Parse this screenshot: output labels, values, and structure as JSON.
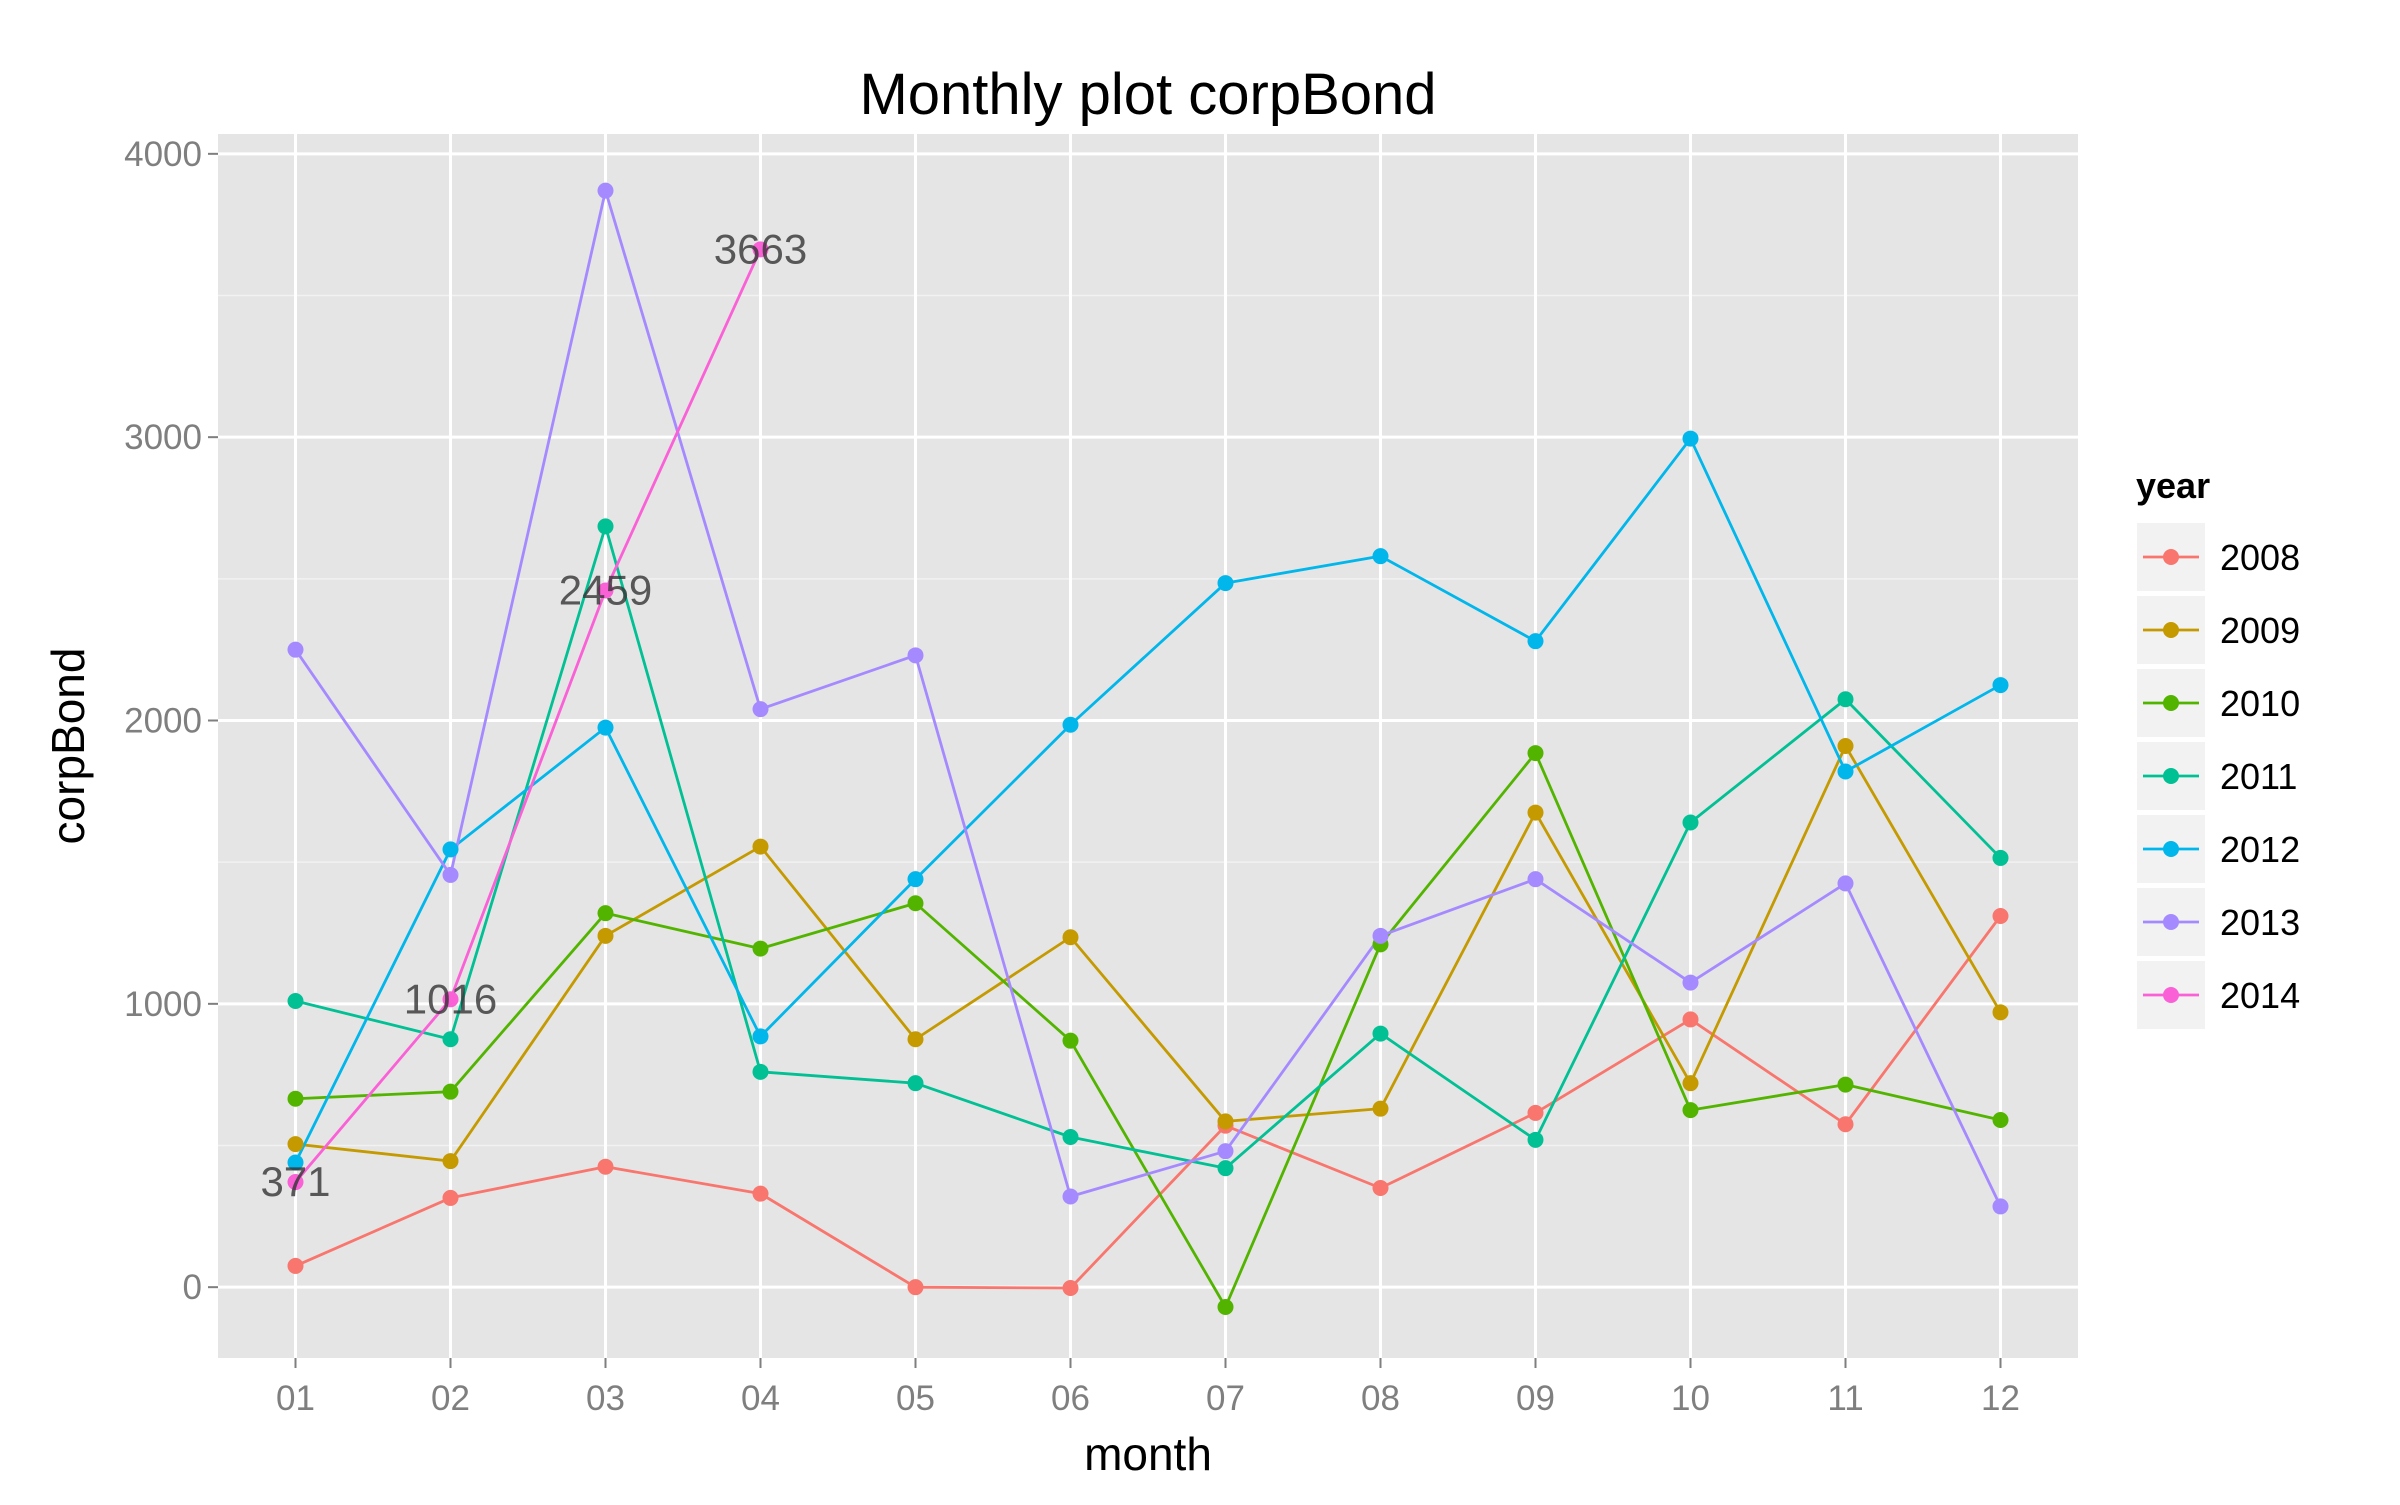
{
  "chart_data": {
    "type": "line",
    "title": "Monthly plot corpBond",
    "xlabel": "month",
    "ylabel": "corpBond",
    "categories": [
      "01",
      "02",
      "03",
      "04",
      "05",
      "06",
      "07",
      "08",
      "09",
      "10",
      "11",
      "12"
    ],
    "yticks": [
      0,
      1000,
      2000,
      3000,
      4000
    ],
    "ylim": [
      -250,
      4070
    ],
    "grid": true,
    "legend": {
      "title": "year",
      "placement": "right"
    },
    "series": [
      {
        "name": "2008",
        "color": "#F8766D",
        "values": [
          75,
          315,
          425,
          330,
          0,
          -3,
          570,
          350,
          615,
          945,
          575,
          1310
        ]
      },
      {
        "name": "2009",
        "color": "#C49A00",
        "values": [
          505,
          445,
          1240,
          1555,
          875,
          1235,
          585,
          630,
          1675,
          720,
          1910,
          970
        ]
      },
      {
        "name": "2010",
        "color": "#53B400",
        "values": [
          665,
          690,
          1320,
          1195,
          1355,
          870,
          -70,
          1210,
          1885,
          625,
          715,
          590
        ]
      },
      {
        "name": "2011",
        "color": "#00C094",
        "values": [
          1010,
          875,
          2685,
          760,
          720,
          530,
          420,
          895,
          520,
          1640,
          2075,
          1515
        ]
      },
      {
        "name": "2012",
        "color": "#00B6EB",
        "values": [
          440,
          1545,
          1975,
          885,
          1440,
          1985,
          2485,
          2580,
          2280,
          2995,
          1820,
          2125
        ]
      },
      {
        "name": "2013",
        "color": "#A58AFF",
        "values": [
          2250,
          1455,
          3870,
          2040,
          2230,
          320,
          480,
          1240,
          1440,
          1075,
          1425,
          285
        ]
      },
      {
        "name": "2014",
        "color": "#FB61D7",
        "values": [
          371,
          1016,
          2459,
          3663,
          null,
          null,
          null,
          null,
          null,
          null,
          null,
          null
        ]
      }
    ],
    "annotations": [
      {
        "month": "01",
        "value": 371,
        "text": "371"
      },
      {
        "month": "02",
        "value": 1016,
        "text": "1016"
      },
      {
        "month": "03",
        "value": 2459,
        "text": "2459"
      },
      {
        "month": "04",
        "value": 3663,
        "text": "3663"
      }
    ]
  }
}
